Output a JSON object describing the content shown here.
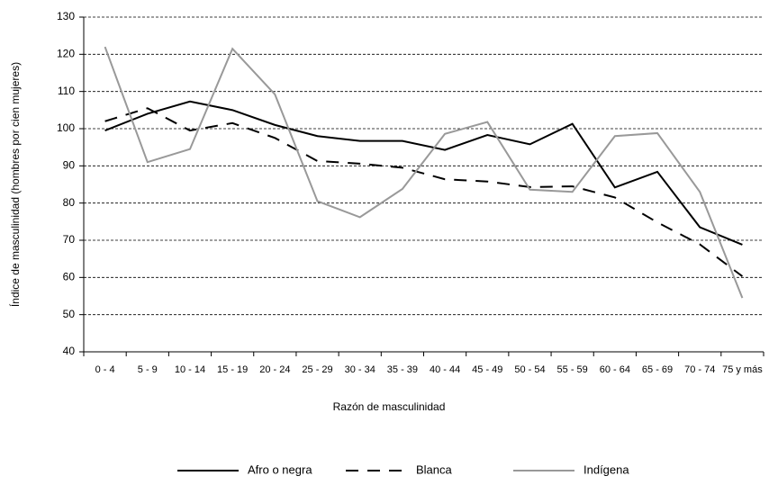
{
  "chart_data": {
    "type": "line",
    "x_label": "Razón de masculinidad",
    "y_label": "Índice de masculinidad (hombres por cien mujeres)",
    "categories": [
      "0 - 4",
      "5 - 9",
      "10 - 14",
      "15 - 19",
      "20 - 24",
      "25 - 29",
      "30 - 34",
      "35 - 39",
      "40 - 44",
      "45 - 49",
      "50 - 54",
      "55 - 59",
      "60 - 64",
      "65 - 69",
      "70 - 74",
      "75 y más"
    ],
    "series": [
      {
        "name": "Afro o negra",
        "color": "#000000",
        "dash": "solid",
        "values": [
          99.5,
          104,
          107.3,
          105,
          101,
          98,
          96.7,
          96.7,
          94.3,
          98.3,
          95.8,
          101.3,
          84.2,
          88.4,
          73.5,
          68.8
        ]
      },
      {
        "name": "Blanca",
        "color": "#000000",
        "dash": "dashed",
        "values": [
          102,
          105.5,
          99.5,
          101.5,
          97.5,
          91.3,
          90.6,
          89.5,
          86.4,
          85.8,
          84.3,
          84.5,
          81.5,
          74.8,
          68.9,
          60.3
        ]
      },
      {
        "name": "Indígena",
        "color": "#999999",
        "dash": "solid",
        "values": [
          122,
          91,
          94.5,
          121.5,
          109.2,
          80.5,
          76.2,
          83.8,
          98.6,
          101.8,
          83.6,
          83,
          98,
          98.8,
          83,
          54.5
        ]
      }
    ],
    "ylim": [
      40,
      130
    ],
    "yticks": [
      40,
      50,
      60,
      70,
      80,
      90,
      100,
      110,
      120,
      130
    ],
    "grid": true,
    "legend": "bottom"
  }
}
